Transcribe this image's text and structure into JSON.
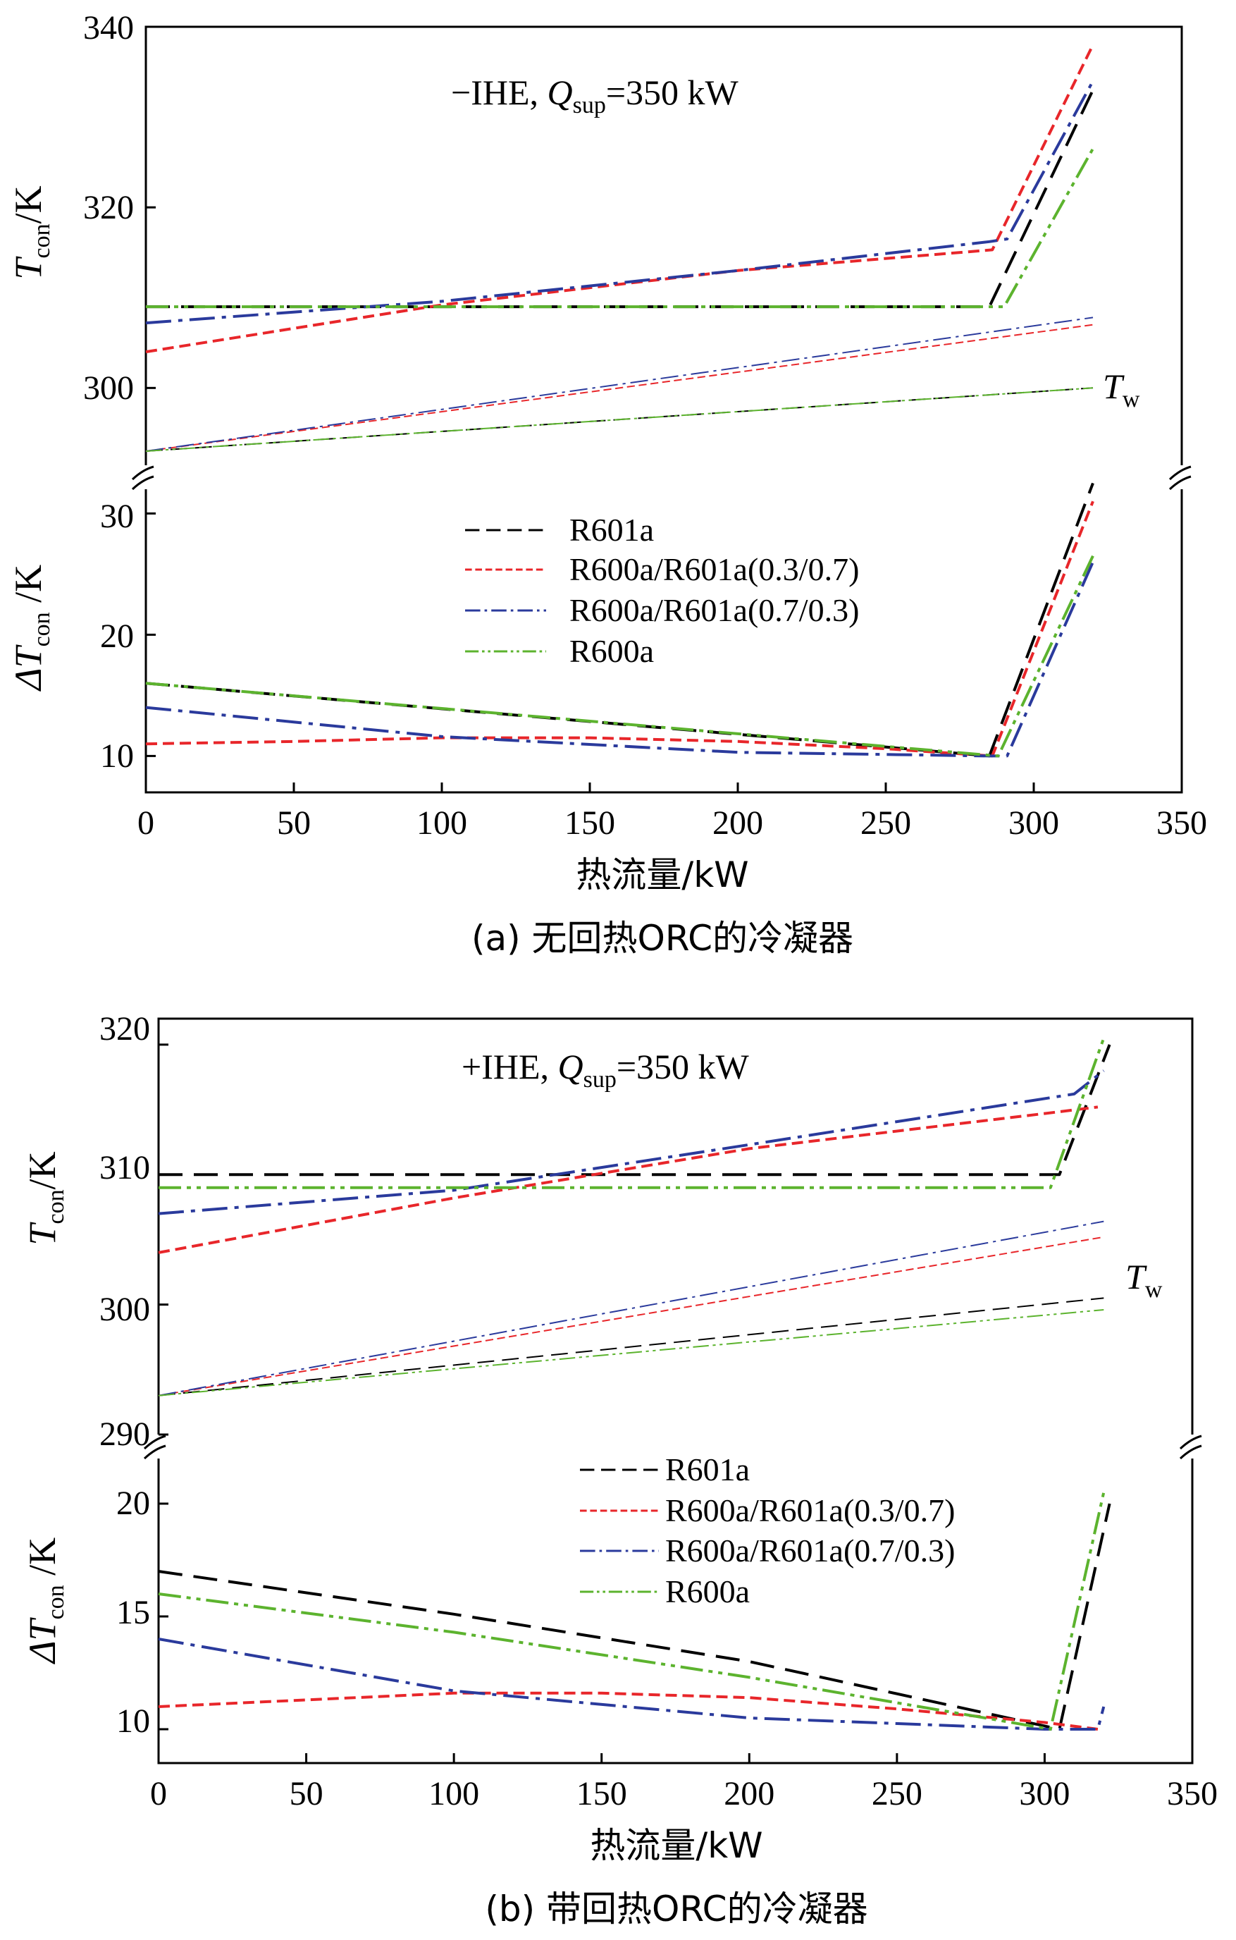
{
  "series_styles": {
    "R601a": {
      "color": "#000000",
      "dash": "34 16"
    },
    "R600a/R601a(0.3/0.7)": {
      "color": "#e8262a",
      "dash": "16 8"
    },
    "R600a/R601a(0.7/0.3)": {
      "color": "#2a3a9c",
      "dash": "36 10 6 10"
    },
    "R600a": {
      "color": "#5cb32e",
      "dash": "32 8 6 8 6 8"
    }
  },
  "chart_data": [
    {
      "type": "line",
      "caption": "(a) 无回热ORC的冷凝器",
      "xlabel": "热流量/kW",
      "xlim": [
        0,
        350
      ],
      "xticks": [
        "0",
        "50",
        "100",
        "150",
        "200",
        "250",
        "300",
        "350"
      ],
      "upper": {
        "ylabel_main": "T",
        "ylabel_sub": "con",
        "ylabel_unit": "/K",
        "ylim": [
          293,
          340
        ],
        "yticks": [
          "300",
          "320",
          "340"
        ],
        "annotation": {
          "prefix": "−IHE, ",
          "q": "Q",
          "q_sub": "sup",
          "value": "=350 kW"
        },
        "tw_label": {
          "main": "T",
          "sub": "w"
        },
        "series": [
          {
            "name": "R601a",
            "kind": "Tcon",
            "x": [
              0,
              285,
              320
            ],
            "y": [
              309,
              309,
              333
            ]
          },
          {
            "name": "R600a/R601a(0.3/0.7)",
            "kind": "Tcon",
            "x": [
              0,
              100,
              200,
              286,
              320
            ],
            "y": [
              304,
              309.2,
              313,
              315.3,
              338
            ]
          },
          {
            "name": "R600a/R601a(0.7/0.3)",
            "kind": "Tcon",
            "x": [
              0,
              100,
              200,
              285,
              291,
              320
            ],
            "y": [
              307.2,
              309.6,
              313,
              316.2,
              316.5,
              334
            ]
          },
          {
            "name": "R600a",
            "kind": "Tcon",
            "x": [
              0,
              290,
              320
            ],
            "y": [
              309,
              309,
              326.5
            ]
          },
          {
            "name": "R601a",
            "kind": "Tw",
            "x": [
              0,
              320
            ],
            "y": [
              293,
              300
            ]
          },
          {
            "name": "R600a/R601a(0.3/0.7)",
            "kind": "Tw",
            "x": [
              0,
              320
            ],
            "y": [
              293,
              307
            ]
          },
          {
            "name": "R600a/R601a(0.7/0.3)",
            "kind": "Tw",
            "x": [
              0,
              320
            ],
            "y": [
              293,
              307.8
            ]
          },
          {
            "name": "R600a",
            "kind": "Tw",
            "x": [
              0,
              320
            ],
            "y": [
              293,
              300
            ]
          }
        ]
      },
      "lower": {
        "ylabel_main": "ΔT",
        "ylabel_sub": "con",
        "ylabel_unit": " /K",
        "ylim": [
          7,
          32
        ],
        "yticks": [
          "10",
          "20",
          "30"
        ],
        "legend": [
          "R601a",
          "R600a/R601a(0.3/0.7)",
          "R600a/R601a(0.7/0.3)",
          "R600a"
        ],
        "series": [
          {
            "name": "R601a",
            "x": [
              0,
              285,
              320
            ],
            "y": [
              16,
              10,
              32.5
            ]
          },
          {
            "name": "R600a/R601a(0.3/0.7)",
            "x": [
              0,
              50,
              100,
              150,
              200,
              250,
              286,
              320
            ],
            "y": [
              11,
              11.2,
              11.5,
              11.5,
              11.2,
              10.6,
              10,
              31
            ]
          },
          {
            "name": "R600a/R601a(0.7/0.3)",
            "x": [
              0,
              100,
              200,
              285,
              291,
              320
            ],
            "y": [
              14,
              11.6,
              10.3,
              10,
              10,
              26
            ]
          },
          {
            "name": "R600a",
            "x": [
              0,
              288,
              320
            ],
            "y": [
              16,
              10,
              26.5
            ]
          }
        ]
      }
    },
    {
      "type": "line",
      "caption": "(b) 带回热ORC的冷凝器",
      "xlabel": "热流量/kW",
      "xlim": [
        0,
        350
      ],
      "xticks": [
        "0",
        "50",
        "100",
        "150",
        "200",
        "250",
        "300",
        "350"
      ],
      "upper": {
        "ylabel_main": "T",
        "ylabel_sub": "con",
        "ylabel_unit": "/K",
        "ylim": [
          290,
          322
        ],
        "yticks": [
          "290",
          "300",
          "310",
          "320"
        ],
        "annotation": {
          "prefix": "+IHE, ",
          "q": "Q",
          "q_sub": "sup",
          "value": "=350 kW"
        },
        "tw_label": {
          "main": "T",
          "sub": "w"
        },
        "series": [
          {
            "name": "R601a",
            "kind": "Tcon",
            "x": [
              0,
              305,
              322
            ],
            "y": [
              310,
              310,
              320
            ]
          },
          {
            "name": "R600a/R601a(0.3/0.7)",
            "kind": "Tcon",
            "x": [
              0,
              100,
              200,
              300,
              318
            ],
            "y": [
              304,
              308.2,
              312,
              314.7,
              315.2
            ]
          },
          {
            "name": "R600a/R601a(0.7/0.3)",
            "kind": "Tcon",
            "x": [
              0,
              100,
              200,
              310,
              320
            ],
            "y": [
              307,
              308.8,
              312.3,
              316.2,
              318
            ]
          },
          {
            "name": "R600a",
            "kind": "Tcon",
            "x": [
              0,
              302,
              320
            ],
            "y": [
              309,
              309,
              320.5
            ]
          },
          {
            "name": "R601a",
            "kind": "Tw",
            "x": [
              0,
              320
            ],
            "y": [
              293,
              300.5
            ]
          },
          {
            "name": "R600a/R601a(0.3/0.7)",
            "kind": "Tw",
            "x": [
              0,
              320
            ],
            "y": [
              293,
              305.2
            ]
          },
          {
            "name": "R600a/R601a(0.7/0.3)",
            "kind": "Tw",
            "x": [
              0,
              320
            ],
            "y": [
              293,
              306.4
            ]
          },
          {
            "name": "R600a",
            "kind": "Tw",
            "x": [
              0,
              320
            ],
            "y": [
              293,
              299.6
            ]
          }
        ]
      },
      "lower": {
        "ylabel_main": "ΔT",
        "ylabel_sub": "con",
        "ylabel_unit": " /K",
        "ylim": [
          8.5,
          22
        ],
        "yticks": [
          "10",
          "15",
          "20"
        ],
        "legend": [
          "R601a",
          "R600a/R601a(0.3/0.7)",
          "R600a/R601a(0.7/0.3)",
          "R600a"
        ],
        "series": [
          {
            "name": "R601a",
            "x": [
              0,
              100,
              200,
              305,
              322
            ],
            "y": [
              17,
              15.1,
              13,
              10,
              20
            ]
          },
          {
            "name": "R600a/R601a(0.3/0.7)",
            "x": [
              0,
              50,
              100,
              150,
              200,
              250,
              300,
              318
            ],
            "y": [
              11,
              11.3,
              11.6,
              11.6,
              11.4,
              10.9,
              10.3,
              10
            ]
          },
          {
            "name": "R600a/R601a(0.7/0.3)",
            "x": [
              0,
              100,
              200,
              300,
              318,
              320
            ],
            "y": [
              14,
              11.7,
              10.5,
              10,
              10,
              11
            ]
          },
          {
            "name": "R600a",
            "x": [
              0,
              100,
              200,
              302,
              320
            ],
            "y": [
              16,
              14.3,
              12.3,
              10,
              20.5
            ]
          }
        ]
      }
    }
  ]
}
